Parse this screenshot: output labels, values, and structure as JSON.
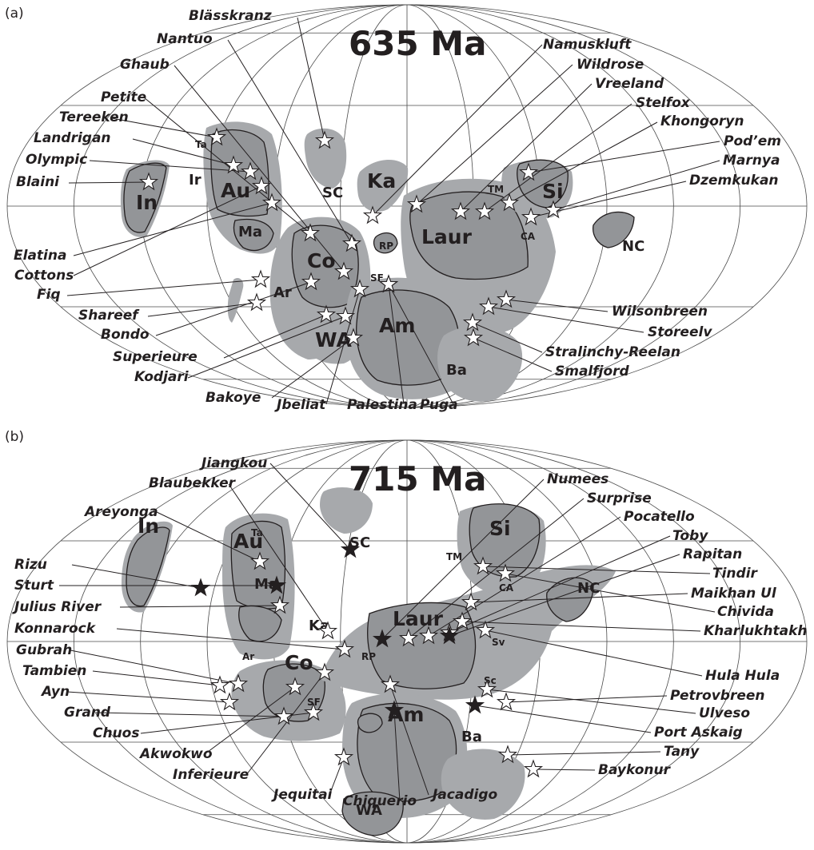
{
  "panels": [
    {
      "letter": "(a)",
      "title": "635 Ma",
      "cratons": [
        {
          "label": "In",
          "size": "big"
        },
        {
          "label": "Au",
          "size": "big"
        },
        {
          "label": "Ir",
          "size": "small"
        },
        {
          "label": "Ta",
          "size": "small"
        },
        {
          "label": "Ma",
          "size": "small"
        },
        {
          "label": "SC",
          "size": "small"
        },
        {
          "label": "Ka",
          "size": "mid"
        },
        {
          "label": "Si",
          "size": "big"
        },
        {
          "label": "TM",
          "size": "small"
        },
        {
          "label": "CA",
          "size": "small"
        },
        {
          "label": "NC",
          "size": "small"
        },
        {
          "label": "Laur",
          "size": "big"
        },
        {
          "label": "Co",
          "size": "big"
        },
        {
          "label": "RP",
          "size": "small"
        },
        {
          "label": "SF",
          "size": "small"
        },
        {
          "label": "Ar",
          "size": "small"
        },
        {
          "label": "WA",
          "size": "mid"
        },
        {
          "label": "Am",
          "size": "big"
        },
        {
          "label": "Ba",
          "size": "mid"
        }
      ],
      "sites": [
        {
          "name": "Blässkranz",
          "marker": "open"
        },
        {
          "name": "Nantuo",
          "marker": "open"
        },
        {
          "name": "Ghaub",
          "marker": "open"
        },
        {
          "name": "Petite",
          "marker": "open"
        },
        {
          "name": "Tereeken",
          "marker": "open"
        },
        {
          "name": "Landrigan",
          "marker": "open"
        },
        {
          "name": "Olympic",
          "marker": "open"
        },
        {
          "name": "Blaini",
          "marker": "open"
        },
        {
          "name": "Elatina",
          "marker": "open"
        },
        {
          "name": "Cottons",
          "marker": "open"
        },
        {
          "name": "Fiq",
          "marker": "open"
        },
        {
          "name": "Shareef",
          "marker": "open"
        },
        {
          "name": "Bondo",
          "marker": "open"
        },
        {
          "name": "Superieure",
          "marker": "open"
        },
        {
          "name": "Kodjari",
          "marker": "open"
        },
        {
          "name": "Bakoye",
          "marker": "open"
        },
        {
          "name": "Jbeliat",
          "marker": "open"
        },
        {
          "name": "Palestina",
          "marker": "open"
        },
        {
          "name": "Puga",
          "marker": "open"
        },
        {
          "name": "Namuskluft",
          "marker": "open"
        },
        {
          "name": "Wildrose",
          "marker": "open"
        },
        {
          "name": "Vreeland",
          "marker": "open"
        },
        {
          "name": "Stelfox",
          "marker": "open"
        },
        {
          "name": "Khongoryn",
          "marker": "open"
        },
        {
          "name": "Pod’em",
          "marker": "open"
        },
        {
          "name": "Marnya",
          "marker": "open"
        },
        {
          "name": "Dzemkukan",
          "marker": "open"
        },
        {
          "name": "Wilsonbreen",
          "marker": "open"
        },
        {
          "name": "Storeelv",
          "marker": "open"
        },
        {
          "name": "Stralinchy-Reelan",
          "marker": "open"
        },
        {
          "name": "Smalfjord",
          "marker": "open"
        }
      ]
    },
    {
      "letter": "(b)",
      "title": "715 Ma",
      "cratons": [
        {
          "label": "In",
          "size": "big"
        },
        {
          "label": "Au",
          "size": "big"
        },
        {
          "label": "Ta",
          "size": "small"
        },
        {
          "label": "Ma",
          "size": "small"
        },
        {
          "label": "SC",
          "size": "mid"
        },
        {
          "label": "Ka",
          "size": "mid"
        },
        {
          "label": "Si",
          "size": "big"
        },
        {
          "label": "TM",
          "size": "small"
        },
        {
          "label": "CA",
          "size": "small"
        },
        {
          "label": "NC",
          "size": "mid"
        },
        {
          "label": "Laur",
          "size": "big"
        },
        {
          "label": "Sv",
          "size": "small"
        },
        {
          "label": "Sc",
          "size": "small"
        },
        {
          "label": "Co",
          "size": "big"
        },
        {
          "label": "RP",
          "size": "small"
        },
        {
          "label": "SF",
          "size": "small"
        },
        {
          "label": "Ar",
          "size": "small"
        },
        {
          "label": "Am",
          "size": "big"
        },
        {
          "label": "Ba",
          "size": "mid"
        },
        {
          "label": "WA",
          "size": "mid"
        }
      ],
      "sites": [
        {
          "name": "Jiangkou",
          "marker": "filled"
        },
        {
          "name": "Blaubekker",
          "marker": "open"
        },
        {
          "name": "Areyonga",
          "marker": "open"
        },
        {
          "name": "Rizu",
          "marker": "filled"
        },
        {
          "name": "Sturt",
          "marker": "filled"
        },
        {
          "name": "Julius River",
          "marker": "open"
        },
        {
          "name": "Konnarock",
          "marker": "open"
        },
        {
          "name": "Gubrah",
          "marker": "open"
        },
        {
          "name": "Tambien",
          "marker": "open"
        },
        {
          "name": "Ayn",
          "marker": "open"
        },
        {
          "name": "Grand",
          "marker": "open"
        },
        {
          "name": "Chuos",
          "marker": "open"
        },
        {
          "name": "Akwokwo",
          "marker": "open"
        },
        {
          "name": "Inferieure",
          "marker": "open"
        },
        {
          "name": "Jequitai",
          "marker": "open"
        },
        {
          "name": "Chiquerio",
          "marker": "filled"
        },
        {
          "name": "Jacadigo",
          "marker": "open"
        },
        {
          "name": "Numees",
          "marker": "filled"
        },
        {
          "name": "Surprise",
          "marker": "open"
        },
        {
          "name": "Pocatello",
          "marker": "open"
        },
        {
          "name": "Toby",
          "marker": "open"
        },
        {
          "name": "Rapitan",
          "marker": "filled"
        },
        {
          "name": "Tindir",
          "marker": "open"
        },
        {
          "name": "Maikhan Ul",
          "marker": "open"
        },
        {
          "name": "Chivida",
          "marker": "open"
        },
        {
          "name": "Kharlukhtakh",
          "marker": "open"
        },
        {
          "name": "Hula Hula",
          "marker": "open"
        },
        {
          "name": "Petrovbreen",
          "marker": "open"
        },
        {
          "name": "Ulveso",
          "marker": "open"
        },
        {
          "name": "Port Askaig",
          "marker": "filled"
        },
        {
          "name": "Tany",
          "marker": "open"
        },
        {
          "name": "Baykonur",
          "marker": "open"
        }
      ]
    }
  ],
  "colors": {
    "ocean": "#ffffff",
    "land_shelf": "#a7a9ac",
    "craton": "#939598",
    "ink": "#231f20",
    "open_star_fill": "#ffffff",
    "filled_star_fill": "#231f20"
  }
}
